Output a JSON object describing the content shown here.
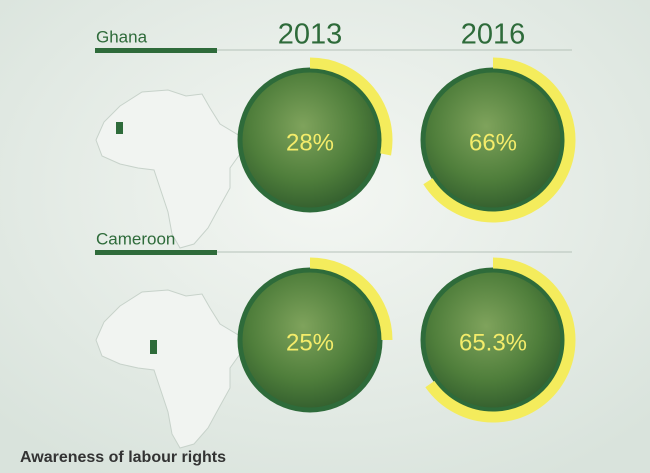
{
  "chart_data": {
    "type": "ring",
    "title": "Awareness of labour rights",
    "categories": [
      "2013",
      "2016"
    ],
    "series": [
      {
        "name": "Ghana",
        "values": [
          28,
          66
        ],
        "value_labels": [
          "28%",
          "66%"
        ]
      },
      {
        "name": "Cameroon",
        "values": [
          25,
          65.3
        ],
        "value_labels": [
          "25%",
          "65.3%"
        ]
      }
    ],
    "ylim": [
      0,
      100
    ],
    "color": "#f4ec5c"
  }
}
